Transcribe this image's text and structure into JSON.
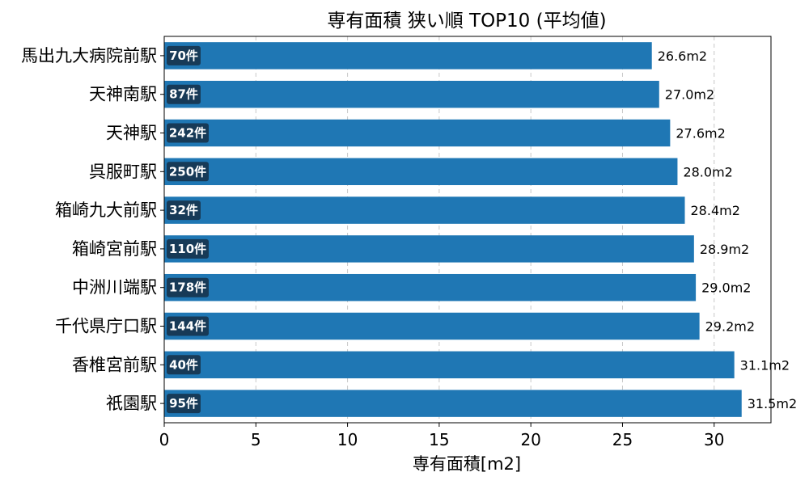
{
  "chart_data": {
    "type": "bar",
    "orientation": "horizontal",
    "title": "専有面積 狭い順 TOP10 (平均値)",
    "xlabel": "専有面積[m2]",
    "ylabel": "",
    "xlim": [
      0,
      33.1
    ],
    "xticks": [
      "0",
      "5",
      "10",
      "15",
      "20",
      "25",
      "30"
    ],
    "grid": "vertical dashed",
    "categories": [
      "馬出九大病院前駅",
      "天神南駅",
      "天神駅",
      "呉服町駅",
      "箱崎九大前駅",
      "箱崎宮前駅",
      "中洲川端駅",
      "千代県庁口駅",
      "香椎宮前駅",
      "祇園駅"
    ],
    "values": [
      26.6,
      27.0,
      27.6,
      28.0,
      28.4,
      28.9,
      29.0,
      29.2,
      31.1,
      31.5
    ],
    "value_labels": [
      "26.6m2",
      "27.0m2",
      "27.6m2",
      "28.0m2",
      "28.4m2",
      "28.9m2",
      "29.0m2",
      "29.2m2",
      "31.1m2",
      "31.5m2"
    ],
    "count_labels": [
      "70件",
      "87件",
      "242件",
      "250件",
      "32件",
      "110件",
      "178件",
      "144件",
      "40件",
      "95件"
    ],
    "colors": {
      "bar": "#1f77b4",
      "count_badge": "#173a57",
      "grid": "#c8c8c8"
    }
  }
}
